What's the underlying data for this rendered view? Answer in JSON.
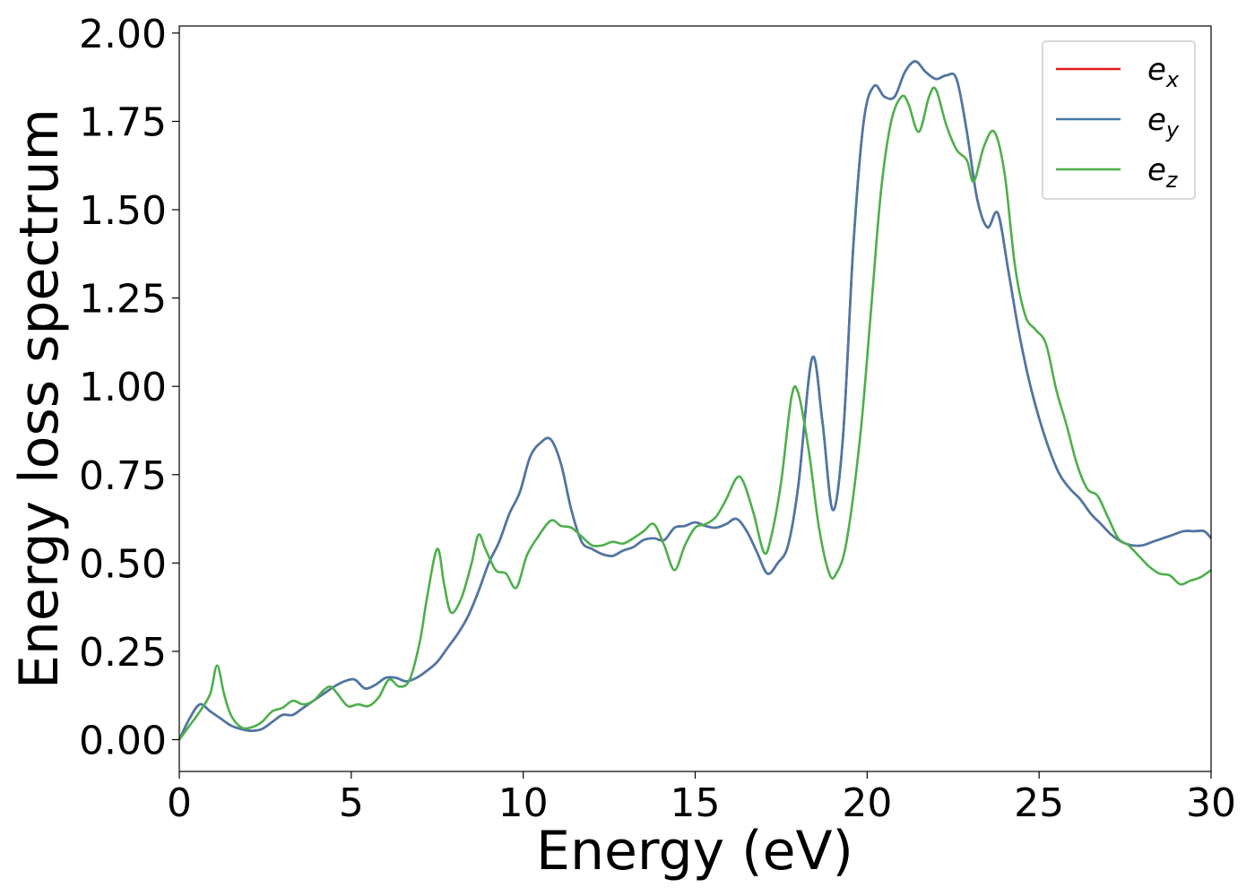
{
  "chart_data": {
    "type": "line",
    "xlabel": "Energy (eV)",
    "ylabel": "Energy loss spectrum",
    "xlim": [
      0,
      30
    ],
    "ylim": [
      -0.09,
      2.02
    ],
    "xticks": [
      0,
      5,
      10,
      15,
      20,
      25,
      30
    ],
    "xtick_labels": [
      "0",
      "5",
      "10",
      "15",
      "20",
      "25",
      "30"
    ],
    "yticks": [
      0.0,
      0.25,
      0.5,
      0.75,
      1.0,
      1.25,
      1.5,
      1.75,
      2.0
    ],
    "ytick_labels": [
      "0.00",
      "0.25",
      "0.50",
      "0.75",
      "1.00",
      "1.25",
      "1.50",
      "1.75",
      "2.00"
    ],
    "grid": false,
    "legend_position": "top-right",
    "series": [
      {
        "name": "e",
        "subscript": "x",
        "color": "#e41a1c",
        "x": [
          0,
          0.3,
          0.6,
          0.9,
          1.2,
          1.5,
          1.8,
          2.1,
          2.4,
          2.7,
          3.0,
          3.3,
          3.6,
          3.9,
          4.2,
          4.5,
          4.8,
          5.1,
          5.4,
          5.7,
          6.0,
          6.3,
          6.6,
          6.9,
          7.2,
          7.5,
          7.8,
          8.1,
          8.4,
          8.7,
          9.0,
          9.3,
          9.6,
          9.9,
          10.2,
          10.5,
          10.8,
          11.1,
          11.4,
          11.7,
          12.0,
          12.3,
          12.6,
          12.9,
          13.2,
          13.5,
          13.8,
          14.1,
          14.4,
          14.7,
          15.0,
          15.3,
          15.6,
          15.9,
          16.2,
          16.5,
          16.8,
          17.1,
          17.4,
          17.7,
          18.0,
          18.4,
          18.7,
          19.0,
          19.3,
          19.6,
          19.9,
          20.2,
          20.5,
          20.8,
          21.1,
          21.4,
          21.7,
          22.0,
          22.3,
          22.6,
          22.9,
          23.2,
          23.5,
          23.8,
          24.1,
          24.4,
          24.7,
          25.0,
          25.3,
          25.6,
          25.9,
          26.2,
          26.5,
          26.8,
          27.1,
          27.4,
          27.7,
          28.0,
          28.3,
          28.6,
          28.9,
          29.2,
          29.5,
          29.8,
          30.0
        ],
        "values": [
          0.0,
          0.06,
          0.1,
          0.08,
          0.06,
          0.04,
          0.03,
          0.025,
          0.03,
          0.05,
          0.07,
          0.07,
          0.09,
          0.11,
          0.13,
          0.15,
          0.165,
          0.17,
          0.145,
          0.155,
          0.175,
          0.175,
          0.165,
          0.175,
          0.195,
          0.22,
          0.26,
          0.3,
          0.35,
          0.42,
          0.5,
          0.56,
          0.64,
          0.7,
          0.8,
          0.84,
          0.85,
          0.78,
          0.65,
          0.56,
          0.54,
          0.525,
          0.52,
          0.535,
          0.545,
          0.565,
          0.57,
          0.565,
          0.6,
          0.605,
          0.615,
          0.605,
          0.6,
          0.61,
          0.625,
          0.59,
          0.53,
          0.47,
          0.5,
          0.55,
          0.72,
          1.08,
          0.9,
          0.65,
          0.86,
          1.4,
          1.75,
          1.85,
          1.82,
          1.82,
          1.89,
          1.92,
          1.89,
          1.87,
          1.88,
          1.87,
          1.72,
          1.53,
          1.45,
          1.49,
          1.33,
          1.16,
          1.02,
          0.91,
          0.82,
          0.75,
          0.71,
          0.68,
          0.64,
          0.61,
          0.58,
          0.56,
          0.55,
          0.55,
          0.56,
          0.57,
          0.58,
          0.59,
          0.59,
          0.59,
          0.57
        ]
      },
      {
        "name": "e",
        "subscript": "y",
        "color": "#4878a8",
        "x": [
          0,
          0.3,
          0.6,
          0.9,
          1.2,
          1.5,
          1.8,
          2.1,
          2.4,
          2.7,
          3.0,
          3.3,
          3.6,
          3.9,
          4.2,
          4.5,
          4.8,
          5.1,
          5.4,
          5.7,
          6.0,
          6.3,
          6.6,
          6.9,
          7.2,
          7.5,
          7.8,
          8.1,
          8.4,
          8.7,
          9.0,
          9.3,
          9.6,
          9.9,
          10.2,
          10.5,
          10.8,
          11.1,
          11.4,
          11.7,
          12.0,
          12.3,
          12.6,
          12.9,
          13.2,
          13.5,
          13.8,
          14.1,
          14.4,
          14.7,
          15.0,
          15.3,
          15.6,
          15.9,
          16.2,
          16.5,
          16.8,
          17.1,
          17.4,
          17.7,
          18.0,
          18.4,
          18.7,
          19.0,
          19.3,
          19.6,
          19.9,
          20.2,
          20.5,
          20.8,
          21.1,
          21.4,
          21.7,
          22.0,
          22.3,
          22.6,
          22.9,
          23.2,
          23.5,
          23.8,
          24.1,
          24.4,
          24.7,
          25.0,
          25.3,
          25.6,
          25.9,
          26.2,
          26.5,
          26.8,
          27.1,
          27.4,
          27.7,
          28.0,
          28.3,
          28.6,
          28.9,
          29.2,
          29.5,
          29.8,
          30.0
        ],
        "values": [
          0.0,
          0.06,
          0.1,
          0.08,
          0.06,
          0.04,
          0.03,
          0.025,
          0.03,
          0.05,
          0.07,
          0.07,
          0.09,
          0.11,
          0.13,
          0.15,
          0.165,
          0.17,
          0.145,
          0.155,
          0.175,
          0.175,
          0.165,
          0.175,
          0.195,
          0.22,
          0.26,
          0.3,
          0.35,
          0.42,
          0.5,
          0.56,
          0.64,
          0.7,
          0.8,
          0.84,
          0.85,
          0.78,
          0.65,
          0.56,
          0.54,
          0.525,
          0.52,
          0.535,
          0.545,
          0.565,
          0.57,
          0.565,
          0.6,
          0.605,
          0.615,
          0.605,
          0.6,
          0.61,
          0.625,
          0.59,
          0.53,
          0.47,
          0.5,
          0.55,
          0.72,
          1.08,
          0.9,
          0.65,
          0.86,
          1.4,
          1.75,
          1.85,
          1.82,
          1.82,
          1.89,
          1.92,
          1.89,
          1.87,
          1.88,
          1.87,
          1.72,
          1.53,
          1.45,
          1.49,
          1.33,
          1.16,
          1.02,
          0.91,
          0.82,
          0.75,
          0.71,
          0.68,
          0.64,
          0.61,
          0.58,
          0.56,
          0.55,
          0.55,
          0.56,
          0.57,
          0.58,
          0.59,
          0.59,
          0.59,
          0.57
        ]
      },
      {
        "name": "e",
        "subscript": "z",
        "color": "#4daf4a",
        "x": [
          0,
          0.3,
          0.6,
          0.9,
          1.1,
          1.3,
          1.5,
          1.8,
          2.1,
          2.4,
          2.7,
          3.0,
          3.3,
          3.6,
          3.9,
          4.2,
          4.4,
          4.6,
          4.9,
          5.2,
          5.5,
          5.8,
          6.1,
          6.4,
          6.7,
          7.0,
          7.2,
          7.5,
          7.7,
          7.9,
          8.2,
          8.5,
          8.7,
          8.9,
          9.2,
          9.5,
          9.8,
          10.1,
          10.4,
          10.8,
          11.1,
          11.4,
          11.7,
          12.0,
          12.3,
          12.6,
          12.9,
          13.2,
          13.5,
          13.8,
          14.1,
          14.4,
          14.7,
          15.0,
          15.3,
          15.6,
          15.9,
          16.2,
          16.4,
          16.7,
          17.0,
          17.2,
          17.5,
          17.8,
          18.0,
          18.3,
          18.6,
          18.9,
          19.1,
          19.4,
          19.8,
          20.1,
          20.4,
          20.7,
          21.0,
          21.2,
          21.5,
          21.8,
          22.0,
          22.3,
          22.6,
          22.9,
          23.1,
          23.4,
          23.7,
          24.0,
          24.3,
          24.6,
          24.9,
          25.2,
          25.5,
          25.8,
          26.1,
          26.4,
          26.7,
          27.0,
          27.3,
          27.6,
          27.9,
          28.2,
          28.5,
          28.8,
          29.1,
          29.4,
          29.7,
          30.0
        ],
        "values": [
          0.0,
          0.04,
          0.08,
          0.13,
          0.21,
          0.13,
          0.07,
          0.035,
          0.035,
          0.05,
          0.08,
          0.09,
          0.11,
          0.1,
          0.11,
          0.14,
          0.15,
          0.13,
          0.095,
          0.1,
          0.095,
          0.12,
          0.17,
          0.15,
          0.17,
          0.28,
          0.4,
          0.54,
          0.44,
          0.36,
          0.4,
          0.5,
          0.58,
          0.54,
          0.48,
          0.47,
          0.43,
          0.52,
          0.57,
          0.62,
          0.605,
          0.6,
          0.575,
          0.55,
          0.55,
          0.56,
          0.555,
          0.57,
          0.59,
          0.61,
          0.55,
          0.48,
          0.55,
          0.6,
          0.61,
          0.63,
          0.68,
          0.74,
          0.73,
          0.64,
          0.53,
          0.57,
          0.73,
          0.97,
          0.98,
          0.82,
          0.6,
          0.47,
          0.47,
          0.56,
          0.86,
          1.2,
          1.55,
          1.75,
          1.82,
          1.8,
          1.72,
          1.82,
          1.84,
          1.74,
          1.67,
          1.64,
          1.58,
          1.68,
          1.72,
          1.6,
          1.34,
          1.2,
          1.16,
          1.12,
          0.99,
          0.89,
          0.78,
          0.71,
          0.69,
          0.63,
          0.57,
          0.55,
          0.52,
          0.49,
          0.47,
          0.465,
          0.44,
          0.45,
          0.46,
          0.48
        ]
      }
    ]
  }
}
